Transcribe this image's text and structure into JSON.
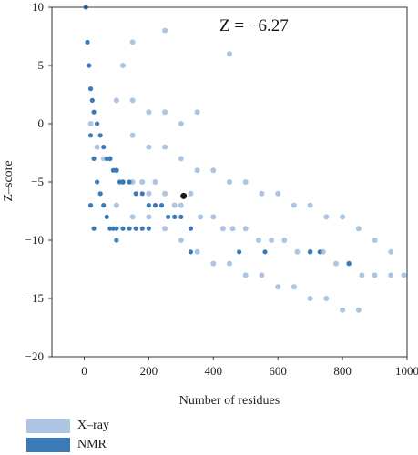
{
  "chart_data": {
    "type": "scatter",
    "title": "",
    "xlabel": "Number of residues",
    "ylabel": "Z–score",
    "annotation": "Z = −6.27",
    "xlim": [
      -100,
      1000
    ],
    "ylim": [
      -20,
      10
    ],
    "xticks": [
      0,
      200,
      400,
      600,
      800,
      1000
    ],
    "xtick_labels": [
      "0",
      "200",
      "400",
      "600",
      "800",
      "1000"
    ],
    "yticks": [
      10,
      5,
      0,
      -5,
      -10,
      -15,
      -20
    ],
    "ytick_labels": [
      "10",
      "5",
      "0",
      "−5",
      "−10",
      "−15",
      "−20"
    ],
    "grid": false,
    "legend_position": "bottom-left",
    "series": [
      {
        "name": "X–ray",
        "color": "#aec4e3",
        "points": [
          [
            20,
            0
          ],
          [
            40,
            -2
          ],
          [
            60,
            -3
          ],
          [
            80,
            -3
          ],
          [
            100,
            -4
          ],
          [
            120,
            -5
          ],
          [
            150,
            -5
          ],
          [
            180,
            -5
          ],
          [
            200,
            -6
          ],
          [
            220,
            -5
          ],
          [
            250,
            -6
          ],
          [
            280,
            -7
          ],
          [
            300,
            -7
          ],
          [
            330,
            -6
          ],
          [
            360,
            -8
          ],
          [
            400,
            -8
          ],
          [
            430,
            -9
          ],
          [
            460,
            -9
          ],
          [
            500,
            -9
          ],
          [
            540,
            -10
          ],
          [
            580,
            -10
          ],
          [
            620,
            -10
          ],
          [
            660,
            -11
          ],
          [
            700,
            -11
          ],
          [
            740,
            -11
          ],
          [
            780,
            -12
          ],
          [
            820,
            -12
          ],
          [
            860,
            -13
          ],
          [
            900,
            -13
          ],
          [
            950,
            -13
          ],
          [
            990,
            -13
          ],
          [
            150,
            -1
          ],
          [
            200,
            -2
          ],
          [
            250,
            -2
          ],
          [
            300,
            -3
          ],
          [
            350,
            -4
          ],
          [
            400,
            -4
          ],
          [
            450,
            -5
          ],
          [
            500,
            -5
          ],
          [
            550,
            -6
          ],
          [
            600,
            -6
          ],
          [
            650,
            -7
          ],
          [
            700,
            -7
          ],
          [
            750,
            -8
          ],
          [
            800,
            -8
          ],
          [
            850,
            -9
          ],
          [
            900,
            -10
          ],
          [
            950,
            -11
          ],
          [
            100,
            2
          ],
          [
            150,
            2
          ],
          [
            200,
            1
          ],
          [
            250,
            1
          ],
          [
            300,
            0
          ],
          [
            350,
            1
          ],
          [
            300,
            -10
          ],
          [
            350,
            -11
          ],
          [
            400,
            -12
          ],
          [
            450,
            -12
          ],
          [
            500,
            -13
          ],
          [
            550,
            -13
          ],
          [
            600,
            -14
          ],
          [
            650,
            -14
          ],
          [
            700,
            -15
          ],
          [
            750,
            -15
          ],
          [
            800,
            -16
          ],
          [
            850,
            -16
          ],
          [
            250,
            -9
          ],
          [
            200,
            -8
          ],
          [
            150,
            -8
          ],
          [
            100,
            -7
          ],
          [
            250,
            8
          ],
          [
            450,
            6
          ],
          [
            150,
            7
          ],
          [
            120,
            5
          ]
        ]
      },
      {
        "name": "NMR",
        "color": "#3a7ab8",
        "points": [
          [
            5,
            10
          ],
          [
            10,
            7
          ],
          [
            15,
            5
          ],
          [
            20,
            3
          ],
          [
            25,
            2
          ],
          [
            30,
            1
          ],
          [
            40,
            0
          ],
          [
            50,
            -1
          ],
          [
            60,
            -2
          ],
          [
            70,
            -3
          ],
          [
            80,
            -3
          ],
          [
            90,
            -4
          ],
          [
            100,
            -4
          ],
          [
            110,
            -5
          ],
          [
            120,
            -5
          ],
          [
            140,
            -5
          ],
          [
            160,
            -6
          ],
          [
            180,
            -6
          ],
          [
            200,
            -7
          ],
          [
            220,
            -7
          ],
          [
            240,
            -7
          ],
          [
            260,
            -8
          ],
          [
            280,
            -8
          ],
          [
            300,
            -8
          ],
          [
            20,
            -1
          ],
          [
            30,
            -3
          ],
          [
            40,
            -5
          ],
          [
            50,
            -6
          ],
          [
            60,
            -7
          ],
          [
            70,
            -8
          ],
          [
            80,
            -9
          ],
          [
            90,
            -9
          ],
          [
            100,
            -9
          ],
          [
            120,
            -9
          ],
          [
            140,
            -9
          ],
          [
            160,
            -9
          ],
          [
            180,
            -9
          ],
          [
            200,
            -9
          ],
          [
            20,
            -7
          ],
          [
            30,
            -9
          ],
          [
            100,
            -10
          ],
          [
            330,
            -9
          ],
          [
            330,
            -11
          ],
          [
            480,
            -11
          ],
          [
            560,
            -11
          ],
          [
            700,
            -11
          ],
          [
            730,
            -11
          ],
          [
            820,
            -12
          ]
        ]
      }
    ],
    "highlight_point": {
      "x": 308,
      "y": -6.2,
      "color": "#1a1a1a"
    }
  }
}
